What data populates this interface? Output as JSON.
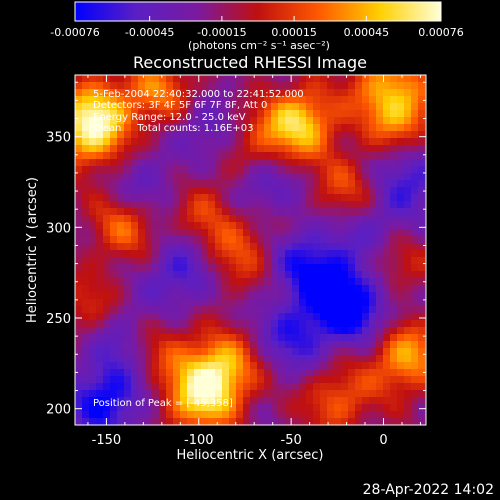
{
  "chart_data": {
    "type": "heatmap",
    "title": "Reconstructed RHESSI Image",
    "xlabel": "Heliocentric X (arcsec)",
    "ylabel": "Heliocentric Y (arcsec)",
    "xlim": [
      -167,
      23
    ],
    "ylim": [
      191,
      384
    ],
    "xticks": [
      -150,
      -100,
      -50,
      0
    ],
    "yticks": [
      200,
      250,
      300,
      350
    ],
    "colorbar": {
      "ticks": [
        -0.00076,
        -0.00045,
        -0.00015,
        0.00015,
        0.00045,
        0.00076
      ],
      "tick_labels": [
        "-0.00076",
        "-0.00045",
        "-0.00015",
        "0.00015",
        "0.00045",
        "0.00076"
      ],
      "units": "(photons cm⁻² s⁻¹ asec⁻²)",
      "range": [
        -0.00076,
        0.00076
      ],
      "colors": [
        "#0000ff",
        "#5a1fc4",
        "#7a1aa0",
        "#c01010",
        "#ff5a00",
        "#ffd000",
        "#ffffd8"
      ]
    },
    "annotations": {
      "time": "5-Feb-2004 22:40:32.000 to 22:41:52.000",
      "detectors": "Detectors: 3F 4F 5F 6F 7F 8F, Att 0",
      "energy": "Energy Range: 12.0 - 25.0 keV",
      "clean": "Clean     Total counts: 1.16E+03",
      "peak": "Position of Peak = [-45,358]"
    },
    "hotspots": [
      {
        "x": -45,
        "y": 358,
        "v": 0.00076
      },
      {
        "x": -88,
        "y": 222,
        "v": 0.0007
      },
      {
        "x": -100,
        "y": 205,
        "v": 0.00068
      },
      {
        "x": 12,
        "y": 228,
        "v": 0.00065
      },
      {
        "x": -160,
        "y": 350,
        "v": 0.0006
      },
      {
        "x": -155,
        "y": 365,
        "v": 0.00055
      },
      {
        "x": -120,
        "y": 375,
        "v": 0.0005
      },
      {
        "x": 10,
        "y": 360,
        "v": 0.00058
      },
      {
        "x": 0,
        "y": 380,
        "v": 0.0005
      },
      {
        "x": -140,
        "y": 300,
        "v": 0.00045
      },
      {
        "x": -60,
        "y": 300,
        "v": 0.0004
      },
      {
        "x": -95,
        "y": 310,
        "v": 0.00035
      },
      {
        "x": -80,
        "y": 282,
        "v": 0.00035
      },
      {
        "x": -125,
        "y": 235,
        "v": 0.0004
      },
      {
        "x": -25,
        "y": 205,
        "v": 0.00045
      },
      {
        "x": 5,
        "y": 280,
        "v": 0.00035
      },
      {
        "x": -20,
        "y": 320,
        "v": 0.0004
      },
      {
        "x": -70,
        "y": 345,
        "v": 0.00035
      },
      {
        "x": -110,
        "y": 340,
        "v": 0.0003
      },
      {
        "x": -158,
        "y": 255,
        "v": 0.00035
      }
    ],
    "coldspots": [
      {
        "x": -100,
        "y": 350,
        "v": -0.00045
      },
      {
        "x": -65,
        "y": 320,
        "v": -0.00045
      },
      {
        "x": -30,
        "y": 270,
        "v": -0.0005
      },
      {
        "x": -15,
        "y": 255,
        "v": -0.00055
      },
      {
        "x": -140,
        "y": 240,
        "v": -0.00045
      },
      {
        "x": -150,
        "y": 205,
        "v": -0.00055
      },
      {
        "x": -110,
        "y": 275,
        "v": -0.0004
      },
      {
        "x": -48,
        "y": 240,
        "v": -0.0004
      },
      {
        "x": 15,
        "y": 330,
        "v": -0.0004
      },
      {
        "x": -125,
        "y": 325,
        "v": -0.00035
      },
      {
        "x": -50,
        "y": 290,
        "v": -0.00045
      },
      {
        "x": -5,
        "y": 300,
        "v": -0.00035
      }
    ]
  },
  "footer": {
    "datetime": "28-Apr-2022 14:02"
  }
}
